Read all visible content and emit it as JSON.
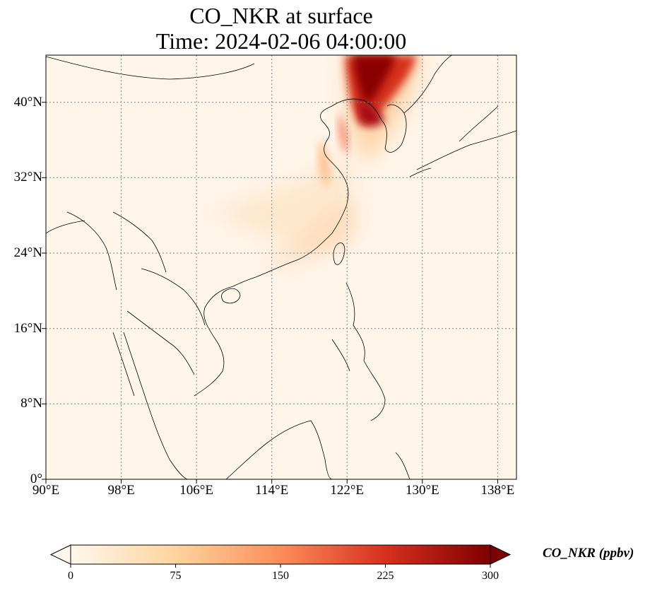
{
  "title": {
    "line1": "CO_NKR at surface",
    "line2": "Time: 2024-02-06 04:00:00"
  },
  "map": {
    "extent": {
      "lon": [
        90,
        140
      ],
      "lat": [
        0,
        45
      ]
    },
    "lat_ticks": [
      "0°",
      "8°N",
      "16°N",
      "24°N",
      "32°N",
      "40°N"
    ],
    "lon_ticks": [
      "90°E",
      "98°E",
      "106°E",
      "114°E",
      "122°E",
      "130°E",
      "138°E"
    ],
    "gridlines": "dotted",
    "colormap": "OrRd",
    "background_color": "#fff5e9",
    "plume_color": "#8b0000"
  },
  "colorbar": {
    "label": "CO_NKR (ppbv)",
    "ticks": [
      "0",
      "75",
      "150",
      "225",
      "300"
    ],
    "range": [
      0,
      300
    ],
    "extend": "both",
    "colors": [
      "#fff7ec",
      "#fdd49e",
      "#fc8d59",
      "#d7301f",
      "#7f0000"
    ]
  }
}
